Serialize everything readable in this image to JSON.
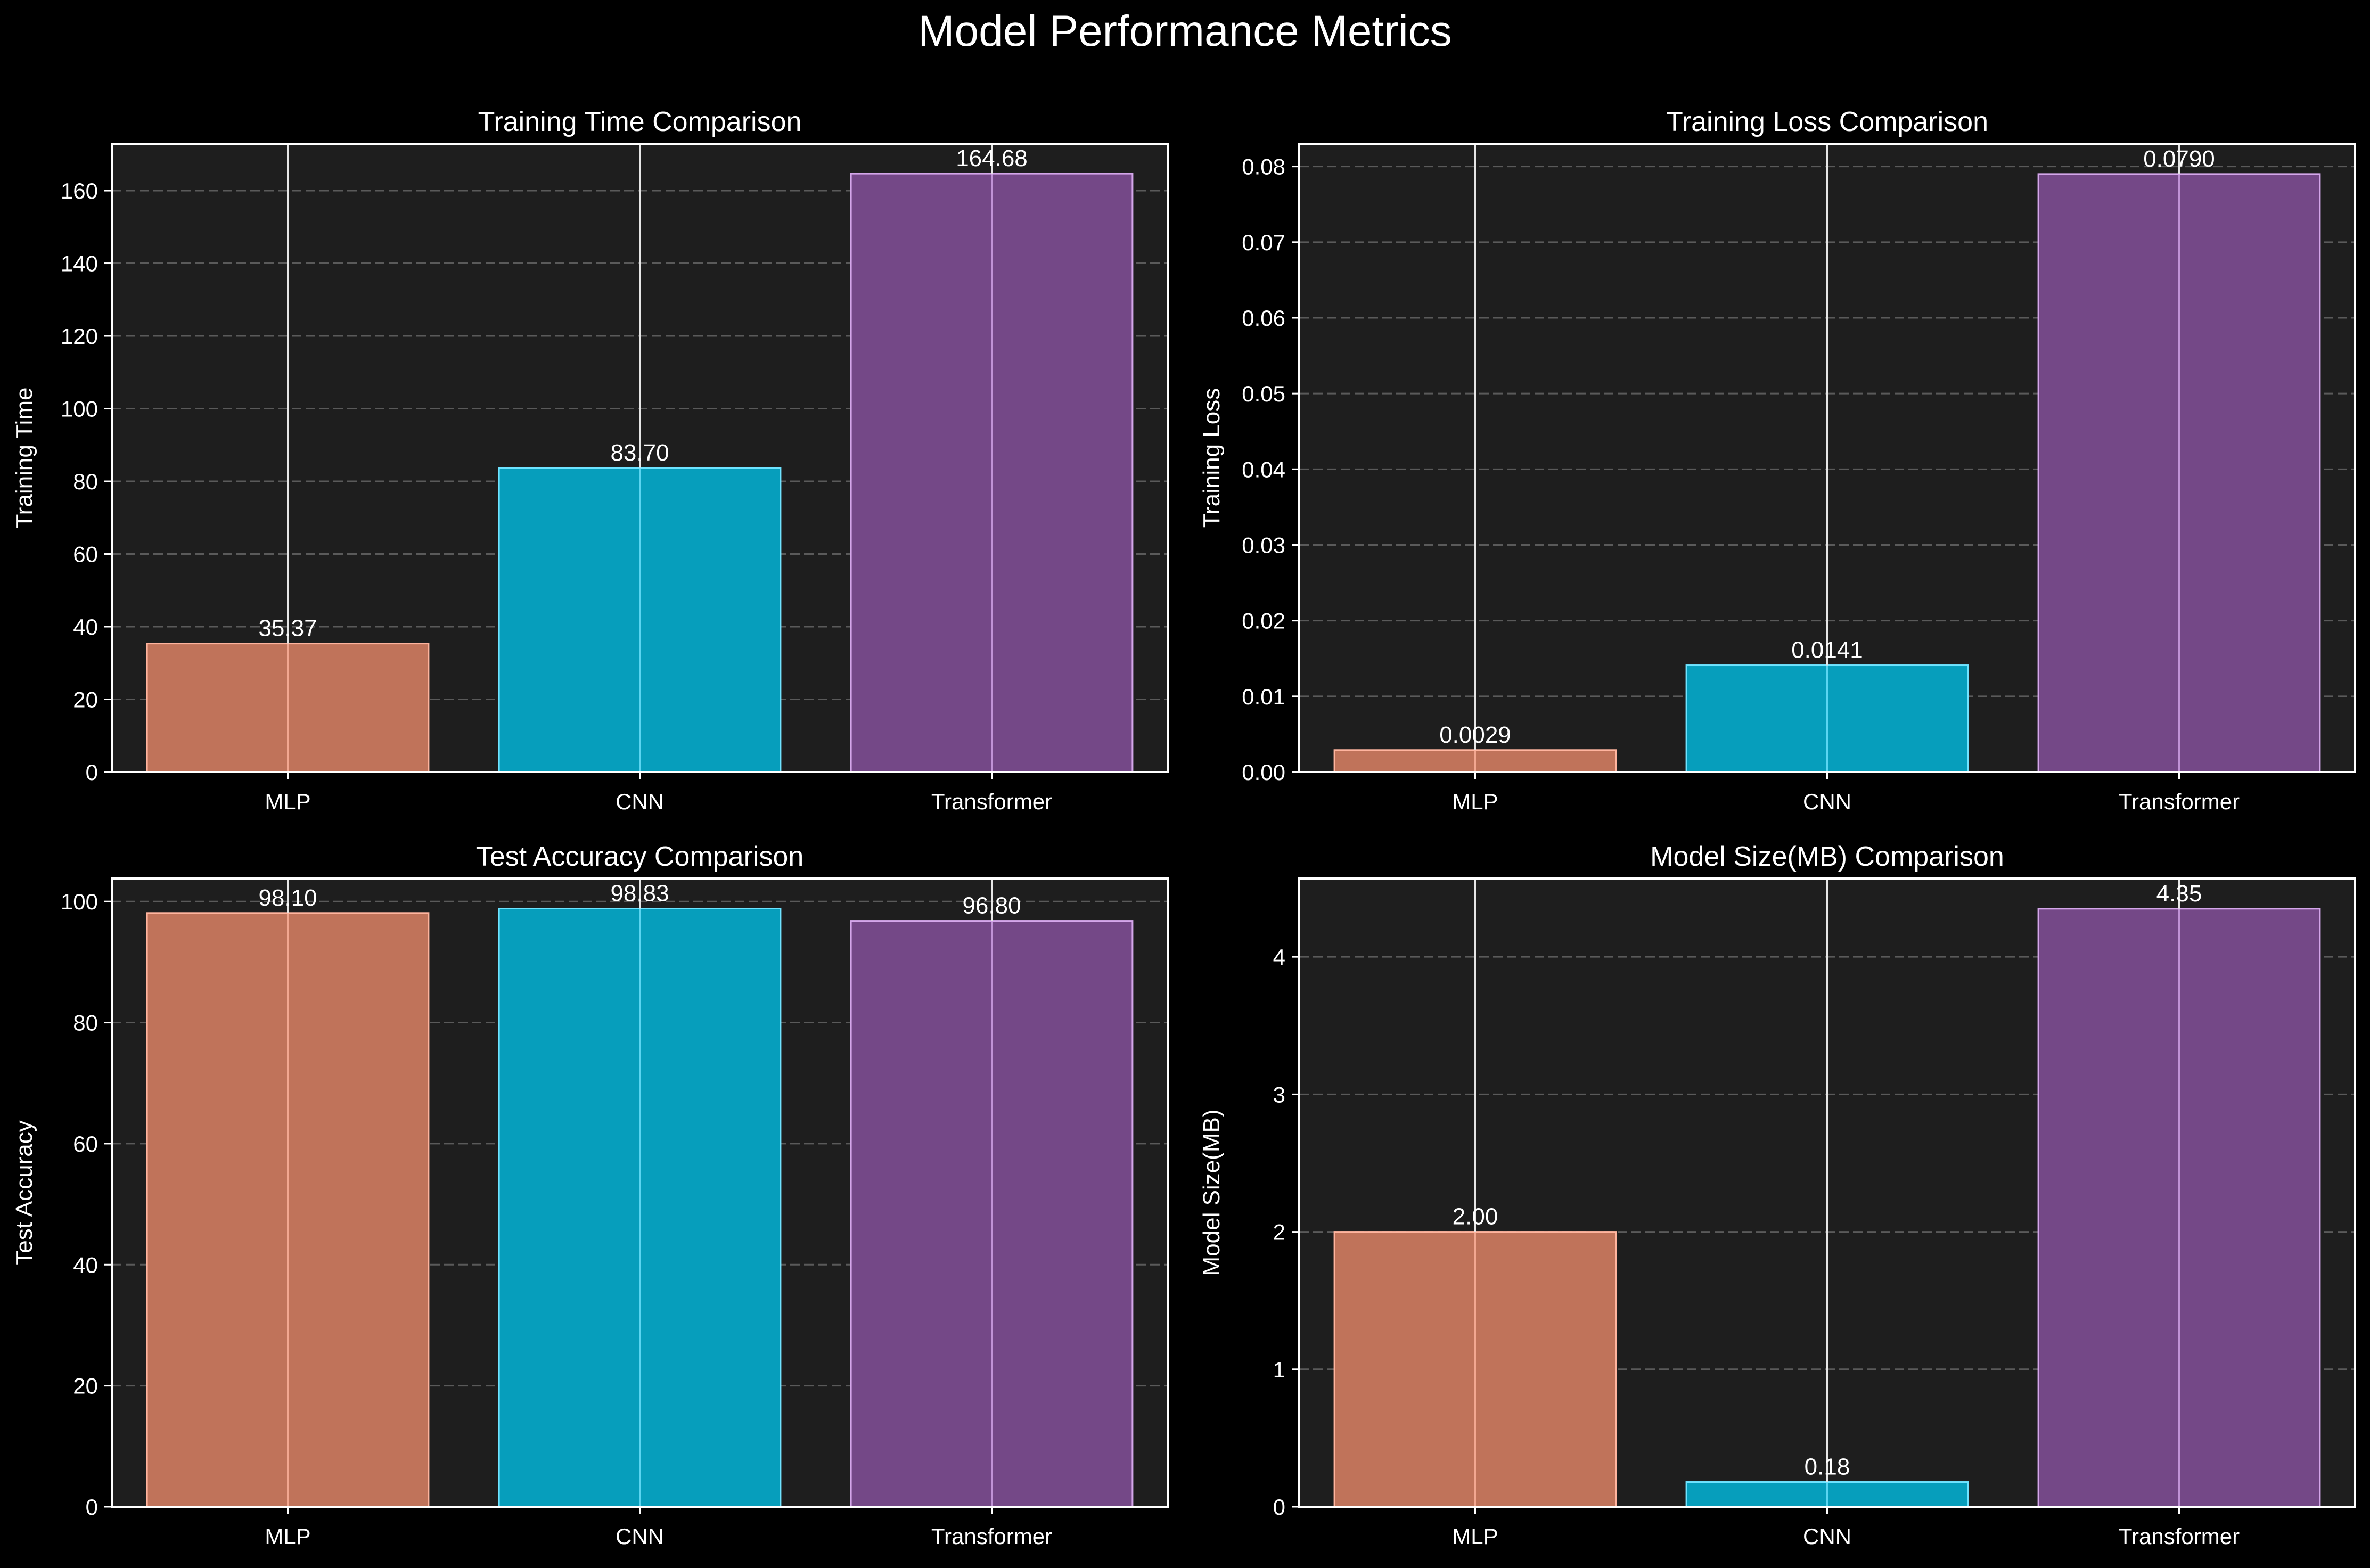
{
  "figure": {
    "suptitle": "Model Performance Metrics"
  },
  "colors": {
    "background": "#000000",
    "axes_face": "#1e1e1e",
    "text": "#ffffff",
    "grid": "#5a5a5a",
    "categorical_grid": "#e6e6e6"
  },
  "chart_data": [
    {
      "type": "bar",
      "title": "Training Time Comparison",
      "xlabel": "",
      "ylabel": "Training Time",
      "categories": [
        "MLP",
        "CNN",
        "Transformer"
      ],
      "values": [
        35.37,
        83.7,
        164.68
      ],
      "labels": [
        "35.37",
        "83.70",
        "164.68"
      ],
      "colors": [
        "#c0735a",
        "#069ebc",
        "#744887"
      ],
      "edge_colors": [
        "#ffb49e",
        "#6fe3ff",
        "#d4a6ea"
      ],
      "ylim": [
        0,
        172.9
      ],
      "yticks": [
        0,
        20,
        40,
        60,
        80,
        100,
        120,
        140,
        160
      ],
      "ytick_labels": [
        "0",
        "20",
        "40",
        "60",
        "80",
        "100",
        "120",
        "140",
        "160"
      ],
      "grid": true
    },
    {
      "type": "bar",
      "title": "Training Loss Comparison",
      "xlabel": "",
      "ylabel": "Training Loss",
      "categories": [
        "MLP",
        "CNN",
        "Transformer"
      ],
      "values": [
        0.0029,
        0.0141,
        0.079
      ],
      "labels": [
        "0.0029",
        "0.0141",
        "0.0790"
      ],
      "colors": [
        "#c0735a",
        "#069ebc",
        "#744887"
      ],
      "edge_colors": [
        "#ffb49e",
        "#6fe3ff",
        "#d4a6ea"
      ],
      "ylim": [
        0,
        0.083
      ],
      "yticks": [
        0,
        0.01,
        0.02,
        0.03,
        0.04,
        0.05,
        0.06,
        0.07,
        0.08
      ],
      "ytick_labels": [
        "0.00",
        "0.01",
        "0.02",
        "0.03",
        "0.04",
        "0.05",
        "0.06",
        "0.07",
        "0.08"
      ],
      "grid": true
    },
    {
      "type": "bar",
      "title": "Test Accuracy Comparison",
      "xlabel": "",
      "ylabel": "Test Accuracy",
      "categories": [
        "MLP",
        "CNN",
        "Transformer"
      ],
      "values": [
        98.1,
        98.83,
        96.8
      ],
      "labels": [
        "98.10",
        "98.83",
        "96.80"
      ],
      "colors": [
        "#c0735a",
        "#069ebc",
        "#744887"
      ],
      "edge_colors": [
        "#ffb49e",
        "#6fe3ff",
        "#d4a6ea"
      ],
      "ylim": [
        0,
        103.8
      ],
      "yticks": [
        0,
        20,
        40,
        60,
        80,
        100
      ],
      "ytick_labels": [
        "0",
        "20",
        "40",
        "60",
        "80",
        "100"
      ],
      "grid": true
    },
    {
      "type": "bar",
      "title": "Model Size(MB) Comparison",
      "xlabel": "",
      "ylabel": "Model Size(MB)",
      "categories": [
        "MLP",
        "CNN",
        "Transformer"
      ],
      "values": [
        2.0,
        0.18,
        4.35
      ],
      "labels": [
        "2.00",
        "0.18",
        "4.35"
      ],
      "colors": [
        "#c0735a",
        "#069ebc",
        "#744887"
      ],
      "edge_colors": [
        "#ffb49e",
        "#6fe3ff",
        "#d4a6ea"
      ],
      "ylim": [
        0,
        4.57
      ],
      "yticks": [
        0,
        1,
        2,
        3,
        4
      ],
      "ytick_labels": [
        "0",
        "1",
        "2",
        "3",
        "4"
      ],
      "grid": true
    }
  ]
}
